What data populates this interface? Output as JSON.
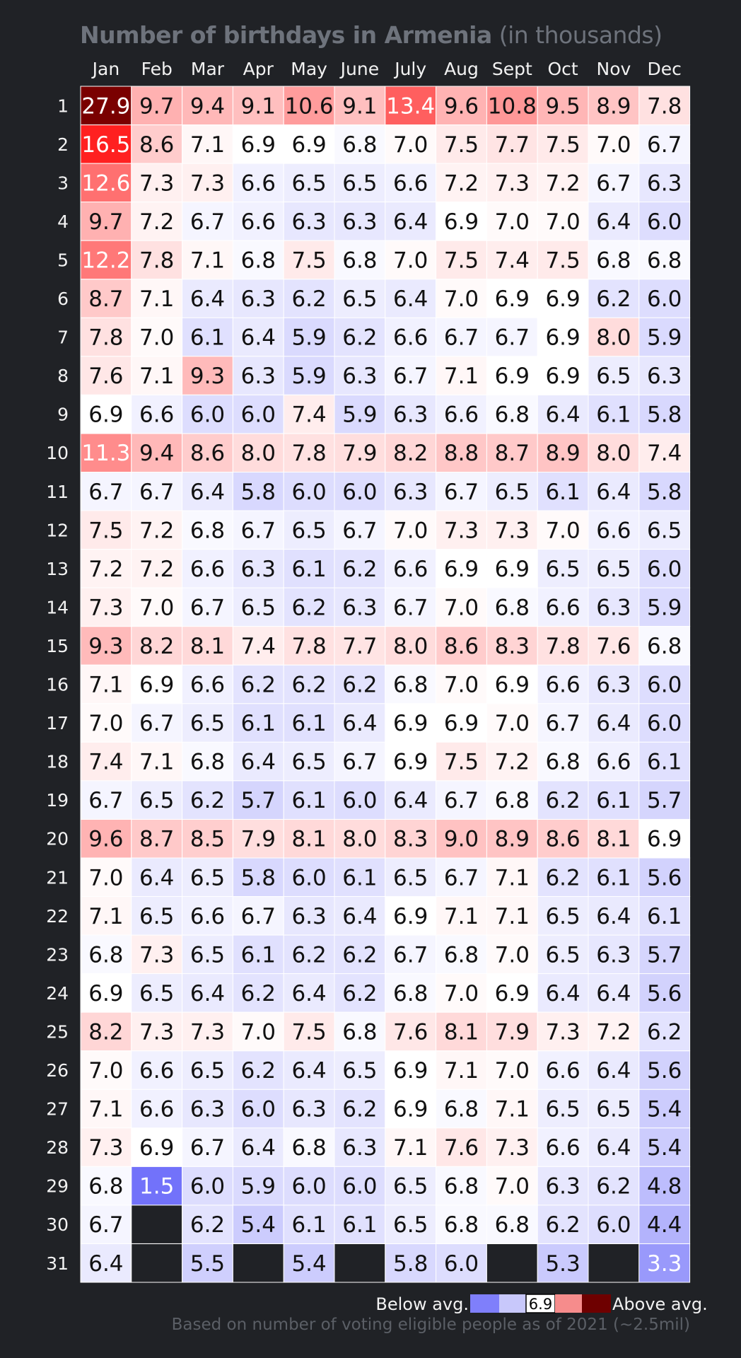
{
  "title": {
    "main": "Number of birthdays in Armenia",
    "sub": "(in thousands)"
  },
  "legend": {
    "below_label": "Below avg.",
    "above_label": "Above avg.",
    "average_value": "6.9",
    "colors": [
      "#7f7ffb",
      "#c8c8fb",
      "#ffffff",
      "#f68c8c",
      "#6e0000"
    ]
  },
  "footnote": "Based on number of voting eligible people as of 2021 (~2.5mil)",
  "colors": {
    "background": "#202226",
    "below_max": "#7272fa",
    "above_mid": "#ff2020",
    "above_max": "#7a0000",
    "missing": "#202226"
  },
  "chart_data": {
    "type": "heatmap",
    "title": "Number of birthdays in Armenia (in thousands)",
    "average": 6.9,
    "x_categories": [
      "Jan",
      "Feb",
      "Mar",
      "Apr",
      "May",
      "June",
      "July",
      "Aug",
      "Sept",
      "Oct",
      "Nov",
      "Dec"
    ],
    "y_categories": [
      "1",
      "2",
      "3",
      "4",
      "5",
      "6",
      "7",
      "8",
      "9",
      "10",
      "11",
      "12",
      "13",
      "14",
      "15",
      "16",
      "17",
      "18",
      "19",
      "20",
      "21",
      "22",
      "23",
      "24",
      "25",
      "26",
      "27",
      "28",
      "29",
      "30",
      "31"
    ],
    "values": [
      [
        27.9,
        9.7,
        9.4,
        9.1,
        10.6,
        9.1,
        13.4,
        9.6,
        10.8,
        9.5,
        8.9,
        7.8
      ],
      [
        16.5,
        8.6,
        7.1,
        6.9,
        6.9,
        6.8,
        7.0,
        7.5,
        7.7,
        7.5,
        7.0,
        6.7
      ],
      [
        12.6,
        7.3,
        7.3,
        6.6,
        6.5,
        6.5,
        6.6,
        7.2,
        7.3,
        7.2,
        6.7,
        6.3
      ],
      [
        9.7,
        7.2,
        6.7,
        6.6,
        6.3,
        6.3,
        6.4,
        6.9,
        7.0,
        7.0,
        6.4,
        6.0
      ],
      [
        12.2,
        7.8,
        7.1,
        6.8,
        7.5,
        6.8,
        7.0,
        7.5,
        7.4,
        7.5,
        6.8,
        6.8
      ],
      [
        8.7,
        7.1,
        6.4,
        6.3,
        6.2,
        6.5,
        6.4,
        7.0,
        6.9,
        6.9,
        6.2,
        6.0
      ],
      [
        7.8,
        7.0,
        6.1,
        6.4,
        5.9,
        6.2,
        6.6,
        6.7,
        6.7,
        6.9,
        8.0,
        5.9
      ],
      [
        7.6,
        7.1,
        9.3,
        6.3,
        5.9,
        6.3,
        6.7,
        7.1,
        6.9,
        6.9,
        6.5,
        6.3
      ],
      [
        6.9,
        6.6,
        6.0,
        6.0,
        7.4,
        5.9,
        6.3,
        6.6,
        6.8,
        6.4,
        6.1,
        5.8
      ],
      [
        11.3,
        9.4,
        8.6,
        8.0,
        7.8,
        7.9,
        8.2,
        8.8,
        8.7,
        8.9,
        8.0,
        7.4
      ],
      [
        6.7,
        6.7,
        6.4,
        5.8,
        6.0,
        6.0,
        6.3,
        6.7,
        6.5,
        6.1,
        6.4,
        5.8
      ],
      [
        7.5,
        7.2,
        6.8,
        6.7,
        6.5,
        6.7,
        7.0,
        7.3,
        7.3,
        7.0,
        6.6,
        6.5
      ],
      [
        7.2,
        7.2,
        6.6,
        6.3,
        6.1,
        6.2,
        6.6,
        6.9,
        6.9,
        6.5,
        6.5,
        6.0
      ],
      [
        7.3,
        7.0,
        6.7,
        6.5,
        6.2,
        6.3,
        6.7,
        7.0,
        6.8,
        6.6,
        6.3,
        5.9
      ],
      [
        9.3,
        8.2,
        8.1,
        7.4,
        7.8,
        7.7,
        8.0,
        8.6,
        8.3,
        7.8,
        7.6,
        6.8
      ],
      [
        7.1,
        6.9,
        6.6,
        6.2,
        6.2,
        6.2,
        6.8,
        7.0,
        6.9,
        6.6,
        6.3,
        6.0
      ],
      [
        7.0,
        6.7,
        6.5,
        6.1,
        6.1,
        6.4,
        6.9,
        6.9,
        7.0,
        6.7,
        6.4,
        6.0
      ],
      [
        7.4,
        7.1,
        6.8,
        6.4,
        6.5,
        6.7,
        6.9,
        7.5,
        7.2,
        6.8,
        6.6,
        6.1
      ],
      [
        6.7,
        6.5,
        6.2,
        5.7,
        6.1,
        6.0,
        6.4,
        6.7,
        6.8,
        6.2,
        6.1,
        5.7
      ],
      [
        9.6,
        8.7,
        8.5,
        7.9,
        8.1,
        8.0,
        8.3,
        9.0,
        8.9,
        8.6,
        8.1,
        6.9
      ],
      [
        7.0,
        6.4,
        6.5,
        5.8,
        6.0,
        6.1,
        6.5,
        6.7,
        7.1,
        6.2,
        6.1,
        5.6
      ],
      [
        7.1,
        6.5,
        6.6,
        6.7,
        6.3,
        6.4,
        6.9,
        7.1,
        7.1,
        6.5,
        6.4,
        6.1
      ],
      [
        6.8,
        7.3,
        6.5,
        6.1,
        6.2,
        6.2,
        6.7,
        6.8,
        7.0,
        6.5,
        6.3,
        5.7
      ],
      [
        6.9,
        6.5,
        6.4,
        6.2,
        6.4,
        6.2,
        6.8,
        7.0,
        6.9,
        6.4,
        6.4,
        5.6
      ],
      [
        8.2,
        7.3,
        7.3,
        7.0,
        7.5,
        6.8,
        7.6,
        8.1,
        7.9,
        7.3,
        7.2,
        6.2
      ],
      [
        7.0,
        6.6,
        6.5,
        6.2,
        6.4,
        6.5,
        6.9,
        7.1,
        7.0,
        6.6,
        6.4,
        5.6
      ],
      [
        7.1,
        6.6,
        6.3,
        6.0,
        6.3,
        6.2,
        6.9,
        6.8,
        7.1,
        6.5,
        6.5,
        5.4
      ],
      [
        7.3,
        6.9,
        6.7,
        6.4,
        6.8,
        6.3,
        7.1,
        7.6,
        7.3,
        6.6,
        6.4,
        5.4
      ],
      [
        6.8,
        1.5,
        6.0,
        5.9,
        6.0,
        6.0,
        6.5,
        6.8,
        7.0,
        6.3,
        6.2,
        4.8
      ],
      [
        6.7,
        null,
        6.2,
        5.4,
        6.1,
        6.1,
        6.5,
        6.8,
        6.8,
        6.2,
        6.0,
        4.4
      ],
      [
        6.4,
        null,
        5.5,
        null,
        5.4,
        null,
        5.8,
        6.0,
        null,
        5.3,
        null,
        3.3
      ]
    ]
  }
}
